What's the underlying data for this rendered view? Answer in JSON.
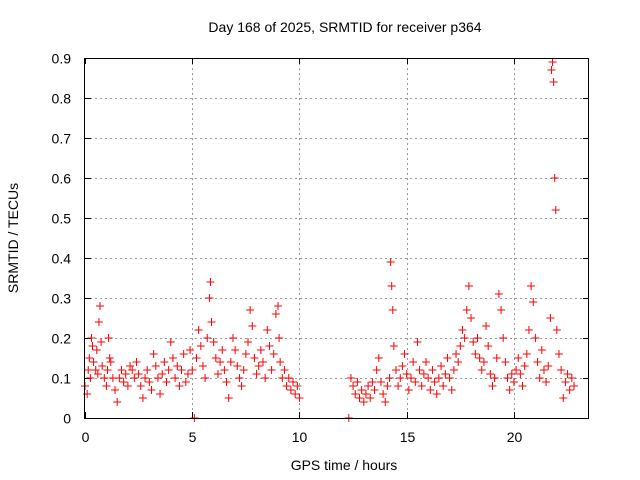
{
  "chart_data": {
    "type": "scatter",
    "title": "Day 168 of 2025, SRMTID for receiver p364",
    "xlabel": "GPS time / hours",
    "ylabel": "SRMTID / TECUs",
    "xlim": [
      0,
      23.5
    ],
    "ylim": [
      0,
      0.9
    ],
    "xticks": [
      0,
      5,
      10,
      15,
      20
    ],
    "yticks": [
      0,
      0.1,
      0.2,
      0.3,
      0.4,
      0.5,
      0.6,
      0.7,
      0.8,
      0.9
    ],
    "grid": true,
    "marker": "+",
    "color": "#ff0000",
    "series": [
      {
        "name": "SRMTID",
        "points": [
          [
            0.0,
            0.08
          ],
          [
            0.1,
            0.06
          ],
          [
            0.15,
            0.12
          ],
          [
            0.2,
            0.15
          ],
          [
            0.25,
            0.1
          ],
          [
            0.3,
            0.2
          ],
          [
            0.35,
            0.18
          ],
          [
            0.4,
            0.14
          ],
          [
            0.5,
            0.12
          ],
          [
            0.55,
            0.17
          ],
          [
            0.6,
            0.11
          ],
          [
            0.65,
            0.24
          ],
          [
            0.7,
            0.28
          ],
          [
            0.75,
            0.19
          ],
          [
            0.8,
            0.13
          ],
          [
            0.9,
            0.1
          ],
          [
            1.0,
            0.08
          ],
          [
            1.05,
            0.12
          ],
          [
            1.1,
            0.2
          ],
          [
            1.15,
            0.15
          ],
          [
            1.2,
            0.14
          ],
          [
            1.3,
            0.1
          ],
          [
            1.4,
            0.07
          ],
          [
            1.5,
            0.04
          ],
          [
            1.6,
            0.1
          ],
          [
            1.7,
            0.12
          ],
          [
            1.8,
            0.09
          ],
          [
            1.9,
            0.11
          ],
          [
            2.0,
            0.08
          ],
          [
            2.1,
            0.13
          ],
          [
            2.2,
            0.12
          ],
          [
            2.3,
            0.1
          ],
          [
            2.4,
            0.14
          ],
          [
            2.5,
            0.11
          ],
          [
            2.6,
            0.08
          ],
          [
            2.7,
            0.05
          ],
          [
            2.8,
            0.1
          ],
          [
            2.9,
            0.12
          ],
          [
            3.0,
            0.09
          ],
          [
            3.1,
            0.07
          ],
          [
            3.2,
            0.16
          ],
          [
            3.3,
            0.13
          ],
          [
            3.4,
            0.1
          ],
          [
            3.5,
            0.06
          ],
          [
            3.6,
            0.11
          ],
          [
            3.7,
            0.14
          ],
          [
            3.8,
            0.09
          ],
          [
            3.9,
            0.12
          ],
          [
            4.0,
            0.19
          ],
          [
            4.1,
            0.15
          ],
          [
            4.2,
            0.1
          ],
          [
            4.3,
            0.13
          ],
          [
            4.4,
            0.08
          ],
          [
            4.5,
            0.12
          ],
          [
            4.6,
            0.16
          ],
          [
            4.7,
            0.09
          ],
          [
            4.8,
            0.11
          ],
          [
            4.9,
            0.17
          ],
          [
            5.0,
            0.12
          ],
          [
            5.1,
            0.0
          ],
          [
            5.2,
            0.15
          ],
          [
            5.3,
            0.22
          ],
          [
            5.4,
            0.18
          ],
          [
            5.5,
            0.13
          ],
          [
            5.6,
            0.1
          ],
          [
            5.7,
            0.2
          ],
          [
            5.8,
            0.3
          ],
          [
            5.85,
            0.34
          ],
          [
            5.9,
            0.24
          ],
          [
            6.0,
            0.19
          ],
          [
            6.1,
            0.15
          ],
          [
            6.2,
            0.11
          ],
          [
            6.3,
            0.14
          ],
          [
            6.4,
            0.17
          ],
          [
            6.5,
            0.12
          ],
          [
            6.6,
            0.09
          ],
          [
            6.7,
            0.05
          ],
          [
            6.8,
            0.14
          ],
          [
            6.9,
            0.2
          ],
          [
            7.0,
            0.17
          ],
          [
            7.1,
            0.13
          ],
          [
            7.2,
            0.1
          ],
          [
            7.3,
            0.08
          ],
          [
            7.4,
            0.12
          ],
          [
            7.5,
            0.16
          ],
          [
            7.6,
            0.19
          ],
          [
            7.7,
            0.27
          ],
          [
            7.8,
            0.23
          ],
          [
            7.9,
            0.15
          ],
          [
            8.0,
            0.11
          ],
          [
            8.1,
            0.13
          ],
          [
            8.2,
            0.17
          ],
          [
            8.3,
            0.14
          ],
          [
            8.4,
            0.1
          ],
          [
            8.5,
            0.22
          ],
          [
            8.6,
            0.18
          ],
          [
            8.7,
            0.12
          ],
          [
            8.8,
            0.16
          ],
          [
            8.9,
            0.26
          ],
          [
            9.0,
            0.28
          ],
          [
            9.05,
            0.2
          ],
          [
            9.1,
            0.14
          ],
          [
            9.2,
            0.1
          ],
          [
            9.3,
            0.12
          ],
          [
            9.4,
            0.08
          ],
          [
            9.5,
            0.1
          ],
          [
            9.6,
            0.07
          ],
          [
            9.7,
            0.09
          ],
          [
            9.8,
            0.06
          ],
          [
            9.9,
            0.08
          ],
          [
            10.0,
            0.05
          ],
          [
            12.3,
            0.0
          ],
          [
            12.4,
            0.1
          ],
          [
            12.5,
            0.08
          ],
          [
            12.6,
            0.06
          ],
          [
            12.7,
            0.09
          ],
          [
            12.8,
            0.05
          ],
          [
            12.9,
            0.07
          ],
          [
            13.0,
            0.04
          ],
          [
            13.1,
            0.06
          ],
          [
            13.2,
            0.08
          ],
          [
            13.3,
            0.05
          ],
          [
            13.4,
            0.09
          ],
          [
            13.5,
            0.07
          ],
          [
            13.6,
            0.12
          ],
          [
            13.7,
            0.15
          ],
          [
            13.8,
            0.09
          ],
          [
            13.9,
            0.06
          ],
          [
            14.0,
            0.04
          ],
          [
            14.1,
            0.08
          ],
          [
            14.2,
            0.1
          ],
          [
            14.25,
            0.39
          ],
          [
            14.3,
            0.33
          ],
          [
            14.35,
            0.27
          ],
          [
            14.4,
            0.18
          ],
          [
            14.5,
            0.12
          ],
          [
            14.6,
            0.08
          ],
          [
            14.7,
            0.1
          ],
          [
            14.8,
            0.13
          ],
          [
            14.9,
            0.16
          ],
          [
            15.0,
            0.11
          ],
          [
            15.1,
            0.07
          ],
          [
            15.2,
            0.1
          ],
          [
            15.3,
            0.14
          ],
          [
            15.4,
            0.09
          ],
          [
            15.5,
            0.19
          ],
          [
            15.6,
            0.12
          ],
          [
            15.7,
            0.08
          ],
          [
            15.8,
            0.11
          ],
          [
            15.9,
            0.14
          ],
          [
            16.0,
            0.1
          ],
          [
            16.1,
            0.07
          ],
          [
            16.2,
            0.12
          ],
          [
            16.3,
            0.09
          ],
          [
            16.4,
            0.06
          ],
          [
            16.5,
            0.1
          ],
          [
            16.6,
            0.13
          ],
          [
            16.7,
            0.08
          ],
          [
            16.8,
            0.11
          ],
          [
            16.9,
            0.15
          ],
          [
            17.0,
            0.1
          ],
          [
            17.1,
            0.07
          ],
          [
            17.2,
            0.12
          ],
          [
            17.3,
            0.16
          ],
          [
            17.4,
            0.14
          ],
          [
            17.5,
            0.18
          ],
          [
            17.6,
            0.22
          ],
          [
            17.7,
            0.2
          ],
          [
            17.8,
            0.27
          ],
          [
            17.9,
            0.33
          ],
          [
            18.0,
            0.25
          ],
          [
            18.1,
            0.19
          ],
          [
            18.2,
            0.16
          ],
          [
            18.3,
            0.2
          ],
          [
            18.4,
            0.15
          ],
          [
            18.5,
            0.12
          ],
          [
            18.6,
            0.14
          ],
          [
            18.7,
            0.23
          ],
          [
            18.8,
            0.18
          ],
          [
            18.9,
            0.11
          ],
          [
            19.0,
            0.08
          ],
          [
            19.1,
            0.1
          ],
          [
            19.2,
            0.15
          ],
          [
            19.3,
            0.31
          ],
          [
            19.4,
            0.27
          ],
          [
            19.5,
            0.2
          ],
          [
            19.6,
            0.14
          ],
          [
            19.7,
            0.1
          ],
          [
            19.8,
            0.07
          ],
          [
            19.9,
            0.11
          ],
          [
            20.0,
            0.09
          ],
          [
            20.1,
            0.12
          ],
          [
            20.2,
            0.15
          ],
          [
            20.3,
            0.11
          ],
          [
            20.4,
            0.08
          ],
          [
            20.5,
            0.13
          ],
          [
            20.6,
            0.16
          ],
          [
            20.7,
            0.22
          ],
          [
            20.8,
            0.33
          ],
          [
            20.9,
            0.29
          ],
          [
            21.0,
            0.2
          ],
          [
            21.1,
            0.14
          ],
          [
            21.2,
            0.1
          ],
          [
            21.3,
            0.17
          ],
          [
            21.4,
            0.12
          ],
          [
            21.5,
            0.09
          ],
          [
            21.6,
            0.13
          ],
          [
            21.7,
            0.25
          ],
          [
            21.75,
            0.87
          ],
          [
            21.8,
            0.89
          ],
          [
            21.85,
            0.84
          ],
          [
            21.9,
            0.6
          ],
          [
            21.95,
            0.52
          ],
          [
            22.0,
            0.22
          ],
          [
            22.1,
            0.16
          ],
          [
            22.2,
            0.12
          ],
          [
            22.3,
            0.05
          ],
          [
            22.4,
            0.09
          ],
          [
            22.5,
            0.11
          ],
          [
            22.6,
            0.07
          ],
          [
            22.7,
            0.1
          ],
          [
            22.8,
            0.08
          ]
        ]
      }
    ]
  }
}
